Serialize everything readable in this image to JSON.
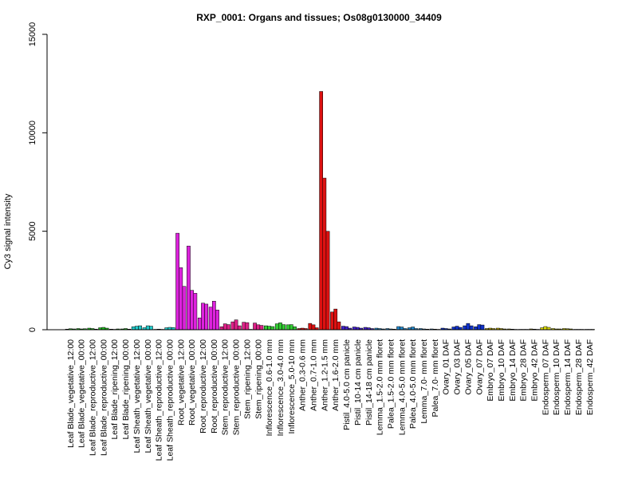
{
  "chart_data": {
    "type": "bar",
    "title": "RXP_0001: Organs and tissues; Os08g0130000_34409",
    "ylabel": "Cy3 signal intensity",
    "xlabel": "",
    "ylim": [
      0,
      15000
    ],
    "yticks": [
      0,
      5000,
      10000,
      15000
    ],
    "grid": false,
    "legend": "none",
    "groups": [
      {
        "label": "Leaf Blade_vegetative_12:00",
        "color": "#22bb22",
        "values": [
          30,
          50,
          40
        ]
      },
      {
        "label": "Leaf Blade_vegetative_00:00",
        "color": "#22bb22",
        "values": [
          60,
          40,
          50
        ]
      },
      {
        "label": "Leaf Blade_reproductive_12:00",
        "color": "#22bb22",
        "values": [
          80,
          60,
          30
        ]
      },
      {
        "label": "Leaf Blade_reproductive_00:00",
        "color": "#22bb22",
        "values": [
          100,
          120,
          80
        ]
      },
      {
        "label": "Leaf Blade_ripening_12:00",
        "color": "#22bb22",
        "values": [
          30,
          20,
          40
        ]
      },
      {
        "label": "Leaf Blade_ripening_00:00",
        "color": "#22bb22",
        "values": [
          40,
          60,
          30
        ]
      },
      {
        "label": "Leaf Sheath_vegetative_12:00",
        "color": "#22cccc",
        "values": [
          150,
          180,
          200
        ]
      },
      {
        "label": "Leaf Sheath_vegetative_00:00",
        "color": "#22cccc",
        "values": [
          100,
          200,
          180
        ]
      },
      {
        "label": "Leaf Sheath_reproductive_12:00",
        "color": "#22cccc",
        "values": [
          20,
          30,
          20
        ]
      },
      {
        "label": "Leaf Sheath_reproductive_00:00",
        "color": "#22cccc",
        "values": [
          100,
          120,
          110
        ]
      },
      {
        "label": "Root_vegetative_12:00",
        "color": "#dd22dd",
        "values": [
          4900,
          3150,
          2200
        ]
      },
      {
        "label": "Root_vegetative_00:00",
        "color": "#dd22dd",
        "values": [
          4250,
          2000,
          1850
        ]
      },
      {
        "label": "Root_reproductive_12:00",
        "color": "#dd22dd",
        "values": [
          600,
          1350,
          1300
        ]
      },
      {
        "label": "Root_reproductive_00:00",
        "color": "#dd22dd",
        "values": [
          1150,
          1450,
          1000
        ]
      },
      {
        "label": "Stem_reproductive_12:00",
        "color": "#dd2288",
        "values": [
          150,
          300,
          260
        ]
      },
      {
        "label": "Stem_reproductive_00:00",
        "color": "#dd2288",
        "values": [
          400,
          500,
          200
        ]
      },
      {
        "label": "Stem_ripening_12:00",
        "color": "#dd2288",
        "values": [
          380,
          360,
          20
        ]
      },
      {
        "label": "Stem_ripening_00:00",
        "color": "#dd2288",
        "values": [
          340,
          250,
          220
        ]
      },
      {
        "label": "Inflorescence_0.6-1.0 mm",
        "color": "#33cc33",
        "values": [
          200,
          180,
          160
        ]
      },
      {
        "label": "Inflorescence_3.0-4.0 mm",
        "color": "#33cc33",
        "values": [
          300,
          350,
          260
        ]
      },
      {
        "label": "Inflorescence_5.0-10 mm",
        "color": "#33cc33",
        "values": [
          250,
          260,
          150
        ]
      },
      {
        "label": "Anther_0.3-0.6 mm",
        "color": "#dd1111",
        "values": [
          60,
          80,
          60
        ]
      },
      {
        "label": "Anther_0.7-1.0 mm",
        "color": "#dd1111",
        "values": [
          320,
          250,
          100
        ]
      },
      {
        "label": "Anther_1.2-1.5 mm",
        "color": "#dd1111",
        "values": [
          12100,
          7700,
          5000
        ]
      },
      {
        "label": "Anther_1.6-2.0 mm",
        "color": "#dd1111",
        "values": [
          900,
          1050,
          400
        ]
      },
      {
        "label": "Pistil_4.0-5.0 cm panicle",
        "color": "#4422cc",
        "values": [
          180,
          160,
          80
        ]
      },
      {
        "label": "Pistil_10-14 cm panicle",
        "color": "#4422cc",
        "values": [
          140,
          120,
          80
        ]
      },
      {
        "label": "Pistil_14-18 cm panicle",
        "color": "#4422cc",
        "values": [
          120,
          100,
          60
        ]
      },
      {
        "label": "Lemma_1.5-2.0 mm floret",
        "color": "#2288cc",
        "values": [
          80,
          60,
          40
        ]
      },
      {
        "label": "Palea_1.5-2.0 mm floret",
        "color": "#2288cc",
        "values": [
          60,
          40,
          30
        ]
      },
      {
        "label": "Lemma_4.0-5.0 mm floret",
        "color": "#2288cc",
        "values": [
          160,
          140,
          60
        ]
      },
      {
        "label": "Palea_4.0-5.0 mm floret",
        "color": "#2288cc",
        "values": [
          100,
          140,
          60
        ]
      },
      {
        "label": "Lemma_7.0- mm floret",
        "color": "#2288cc",
        "values": [
          60,
          40,
          30
        ]
      },
      {
        "label": "Palea_7.0- mm floret",
        "color": "#2288cc",
        "values": [
          40,
          30,
          20
        ]
      },
      {
        "label": "Ovary_01 DAF",
        "color": "#1133cc",
        "values": [
          80,
          60,
          40
        ]
      },
      {
        "label": "Ovary_03 DAF",
        "color": "#1133cc",
        "values": [
          140,
          180,
          120
        ]
      },
      {
        "label": "Ovary_05 DAF",
        "color": "#1133cc",
        "values": [
          200,
          320,
          200
        ]
      },
      {
        "label": "Ovary_07 DAF",
        "color": "#1133cc",
        "values": [
          150,
          260,
          240
        ]
      },
      {
        "label": "Embryo_07 DAF",
        "color": "#bbaa00",
        "values": [
          60,
          80,
          60
        ]
      },
      {
        "label": "Embryo_10 DAF",
        "color": "#bbaa00",
        "values": [
          80,
          60,
          40
        ]
      },
      {
        "label": "Embryo_14 DAF",
        "color": "#bbaa00",
        "values": [
          40,
          30,
          20
        ]
      },
      {
        "label": "Embryo_28 DAF",
        "color": "#bbaa00",
        "values": [
          20,
          20,
          20
        ]
      },
      {
        "label": "Embryo_42 DAF",
        "color": "#bbaa00",
        "values": [
          40,
          30,
          20
        ]
      },
      {
        "label": "Endosperm_07 DAF",
        "color": "#dddd00",
        "values": [
          100,
          160,
          120
        ]
      },
      {
        "label": "Endosperm_10 DAF",
        "color": "#dddd00",
        "values": [
          60,
          40,
          40
        ]
      },
      {
        "label": "Endosperm_14 DAF",
        "color": "#dddd00",
        "values": [
          60,
          50,
          40
        ]
      },
      {
        "label": "Endosperm_28 DAF",
        "color": "#dddd00",
        "values": [
          20,
          20,
          20
        ]
      },
      {
        "label": "Endosperm_42 DAF",
        "color": "#dddd00",
        "values": [
          20,
          20,
          20
        ]
      }
    ]
  }
}
